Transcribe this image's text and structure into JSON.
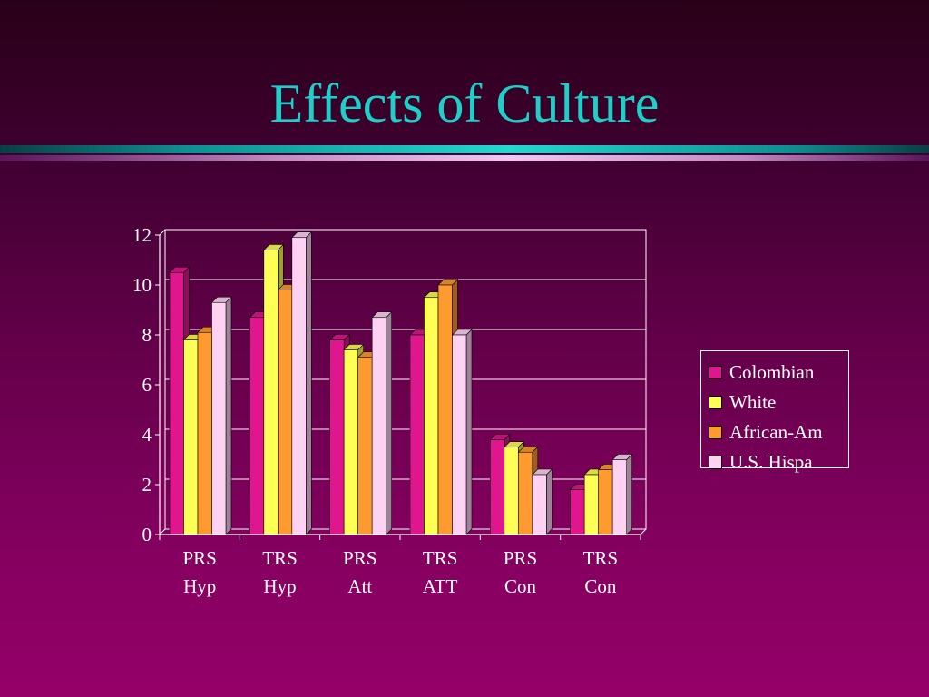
{
  "slide": {
    "title": "Effects of Culture"
  },
  "chart_data": {
    "type": "bar",
    "categories": [
      [
        "PRS",
        "Hyp"
      ],
      [
        "TRS",
        "Hyp"
      ],
      [
        "PRS",
        "Att"
      ],
      [
        "TRS",
        "ATT"
      ],
      [
        "PRS",
        "Con"
      ],
      [
        "TRS",
        "Con"
      ]
    ],
    "series": [
      {
        "name": "Colombian",
        "color": "#e0168e",
        "values": [
          10.5,
          8.7,
          7.8,
          8.0,
          3.8,
          1.8
        ]
      },
      {
        "name": "White",
        "color": "#ffff55",
        "values": [
          7.8,
          11.4,
          7.4,
          9.5,
          3.5,
          2.4
        ]
      },
      {
        "name": "African-Am",
        "color": "#ff9a30",
        "values": [
          8.1,
          9.8,
          7.1,
          10.0,
          3.3,
          2.6
        ]
      },
      {
        "name": "U.S. Hispa",
        "color": "#ffd2f4",
        "values": [
          9.3,
          11.9,
          8.7,
          8.0,
          2.4,
          3.0
        ]
      }
    ],
    "ylim": [
      0,
      12
    ],
    "yticks": [
      0,
      2,
      4,
      6,
      8,
      10,
      12
    ],
    "grid": true,
    "legend_position": "right",
    "three_d": true
  }
}
